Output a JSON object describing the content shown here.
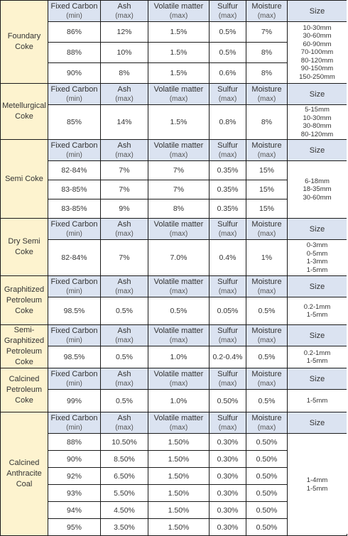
{
  "header_labels": {
    "fixed_carbon": "Fixed Carbon",
    "fixed_carbon_sub": "(min)",
    "ash": "Ash",
    "ash_sub": "(max)",
    "volatile": "Volatile matter",
    "volatile_sub": "(max)",
    "sulfur": "Sulfur",
    "sulfur_sub": "(max)",
    "moisture": "Moisture",
    "moisture_sub": "(max)",
    "size": "Size"
  },
  "sections": [
    {
      "name": "Foundary Coke",
      "rows": [
        [
          "86%",
          "12%",
          "1.5%",
          "0.5%",
          "7%"
        ],
        [
          "88%",
          "10%",
          "1.5%",
          "0.5%",
          "8%"
        ],
        [
          "90%",
          "8%",
          "1.5%",
          "0.6%",
          "8%"
        ]
      ],
      "sizes": [
        "10-30mm",
        "30-60mm",
        "60-90mm",
        "70-100mm",
        "80-120mm",
        "90-150mm",
        "150-250mm"
      ]
    },
    {
      "name": "Metellurgical Coke",
      "rows": [
        [
          "85%",
          "14%",
          "1.5%",
          "0.8%",
          "8%"
        ]
      ],
      "sizes": [
        "5-15mm",
        "10-30mm",
        "30-80mm",
        "80-120mm"
      ]
    },
    {
      "name": "Semi Coke",
      "rows": [
        [
          "82-84%",
          "7%",
          "7%",
          "0.35%",
          "15%"
        ],
        [
          "83-85%",
          "7%",
          "7%",
          "0.35%",
          "15%"
        ],
        [
          "83-85%",
          "9%",
          "8%",
          "0.35%",
          "15%"
        ]
      ],
      "sizes": [
        "6-18mm",
        "18-35mm",
        "30-60mm"
      ]
    },
    {
      "name": "Dry Semi Coke",
      "rows": [
        [
          "82-84%",
          "7%",
          "7.0%",
          "0.4%",
          "1%"
        ]
      ],
      "sizes": [
        "0-3mm",
        "0-5mm",
        "1-3mm",
        "1-5mm"
      ]
    },
    {
      "name": "Graphitized Petroleum Coke",
      "rows": [
        [
          "98.5%",
          "0.5%",
          "0.5%",
          "0.05%",
          "0.5%"
        ]
      ],
      "sizes": [
        "0.2-1mm",
        "1-5mm"
      ]
    },
    {
      "name": "Semi-Graphitized Petroleum Coke",
      "rows": [
        [
          "98.5%",
          "0.5%",
          "1.0%",
          "0.2-0.4%",
          "0.5%"
        ]
      ],
      "sizes": [
        "0.2-1mm",
        "1-5mm"
      ]
    },
    {
      "name": "Calcined Petroleum Coke",
      "rows": [
        [
          "99%",
          "0.5%",
          "1.0%",
          "0.50%",
          "0.5%"
        ]
      ],
      "sizes": [
        "1-5mm"
      ]
    },
    {
      "name": "Calcined Anthracite Coal",
      "rows": [
        [
          "88%",
          "10.50%",
          "1.50%",
          "0.30%",
          "0.50%"
        ],
        [
          "90%",
          "8.50%",
          "1.50%",
          "0.30%",
          "0.50%"
        ],
        [
          "92%",
          "6.50%",
          "1.50%",
          "0.30%",
          "0.50%"
        ],
        [
          "93%",
          "5.50%",
          "1.50%",
          "0.30%",
          "0.50%"
        ],
        [
          "94%",
          "4.50%",
          "1.50%",
          "0.30%",
          "0.50%"
        ],
        [
          "95%",
          "3.50%",
          "1.50%",
          "0.30%",
          "0.50%"
        ]
      ],
      "sizes": [
        "1-4mm",
        "1-5mm"
      ]
    }
  ]
}
